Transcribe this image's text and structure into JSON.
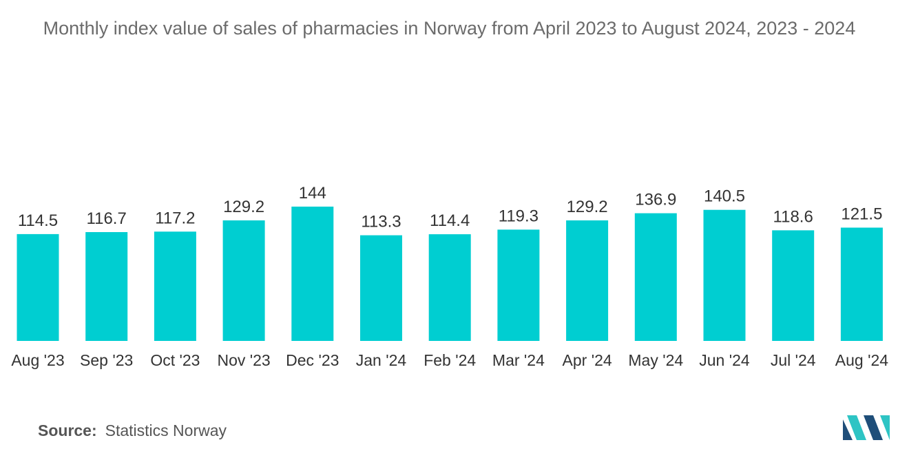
{
  "chart_data": {
    "type": "bar",
    "title": "Monthly index value of sales of pharmacies in Norway from April 2023 to August 2024, 2023 - 2024",
    "categories": [
      "Aug '23",
      "Sep '23",
      "Oct '23",
      "Nov '23",
      "Dec '23",
      "Jan '24",
      "Feb '24",
      "Mar '24",
      "Apr '24",
      "May '24",
      "Jun '24",
      "Jul '24",
      "Aug '24"
    ],
    "values": [
      114.5,
      116.7,
      117.2,
      129.2,
      144,
      113.3,
      114.4,
      119.3,
      129.2,
      136.9,
      140.5,
      118.6,
      121.5
    ],
    "value_labels": [
      "114.5",
      "116.7",
      "117.2",
      "129.2",
      "144",
      "113.3",
      "114.4",
      "119.3",
      "129.2",
      "136.9",
      "140.5",
      "118.6",
      "121.5"
    ],
    "xlabel": "",
    "ylabel": "",
    "ylim": [
      0,
      144
    ],
    "grid": false,
    "legend": "none",
    "bar_color": "#00CED1"
  },
  "source": {
    "label": "Source:",
    "value": "Statistics Norway"
  },
  "logo": {
    "icon": "mordor-intelligence-logo-icon",
    "colors": [
      "#1f4e79",
      "#2ec4c4"
    ]
  }
}
